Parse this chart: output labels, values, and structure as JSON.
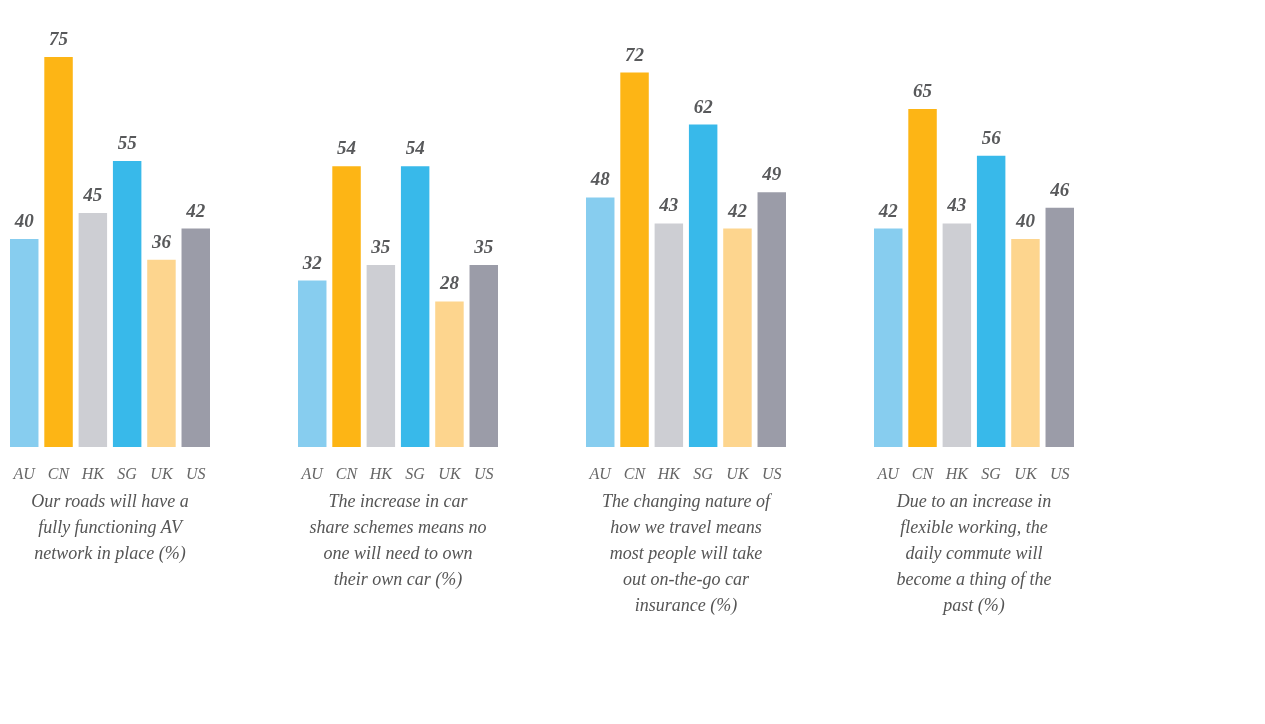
{
  "chart_data": [
    {
      "type": "bar",
      "title": "Our roads will have a fully functioning AV network in place (%)",
      "categories": [
        "AU",
        "CN",
        "HK",
        "SG",
        "UK",
        "US"
      ],
      "values": [
        40,
        75,
        45,
        55,
        36,
        42
      ],
      "colors": [
        "#87cdef",
        "#fdb515",
        "#cdced3",
        "#38b9ea",
        "#fdd58e",
        "#9b9ca8"
      ],
      "data_labels": true
    },
    {
      "type": "bar",
      "title": "The increase in car share schemes means no one will need to own their own car (%)",
      "categories": [
        "AU",
        "CN",
        "HK",
        "SG",
        "UK",
        "US"
      ],
      "values": [
        32,
        54,
        35,
        54,
        28,
        35
      ],
      "colors": [
        "#87cdef",
        "#fdb515",
        "#cdced3",
        "#38b9ea",
        "#fdd58e",
        "#9b9ca8"
      ],
      "data_labels": true
    },
    {
      "type": "bar",
      "title": "The changing nature of how we travel means most people will take out on-the-go car insurance (%)",
      "categories": [
        "AU",
        "CN",
        "HK",
        "SG",
        "UK",
        "US"
      ],
      "values": [
        48,
        72,
        43,
        62,
        42,
        49
      ],
      "colors": [
        "#87cdef",
        "#fdb515",
        "#cdced3",
        "#38b9ea",
        "#fdd58e",
        "#9b9ca8"
      ],
      "data_labels": true
    },
    {
      "type": "bar",
      "title": "Due to an increase in flexible working, the daily commute will become a thing of the past (%)",
      "categories": [
        "AU",
        "CN",
        "HK",
        "SG",
        "UK",
        "US"
      ],
      "values": [
        42,
        65,
        43,
        56,
        40,
        46
      ],
      "colors": [
        "#87cdef",
        "#fdb515",
        "#cdced3",
        "#38b9ea",
        "#fdd58e",
        "#9b9ca8"
      ],
      "data_labels": true
    }
  ]
}
